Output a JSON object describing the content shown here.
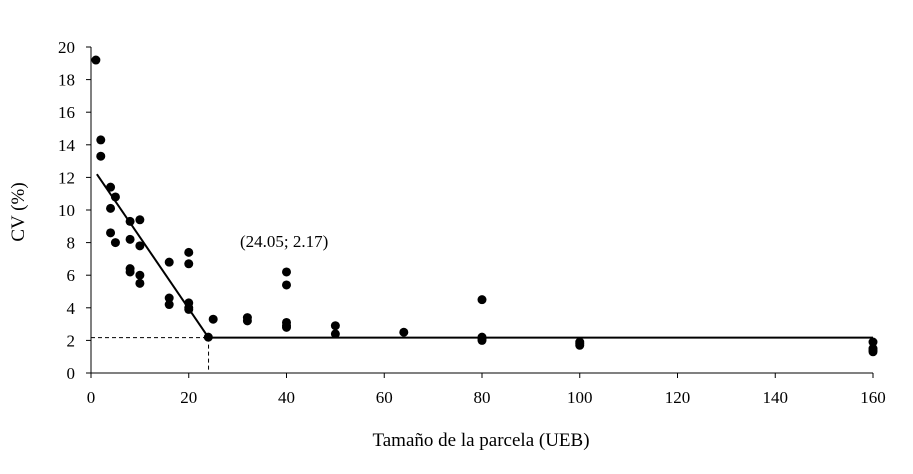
{
  "chart_data": {
    "type": "scatter",
    "title": "",
    "xlabel": "Tamaño de la parcela (UEB)",
    "ylabel": "CV (%)",
    "xlim": [
      0,
      160
    ],
    "ylim": [
      0,
      20
    ],
    "xticks": [
      0,
      20,
      40,
      60,
      80,
      100,
      120,
      140,
      160
    ],
    "yticks": [
      0,
      2,
      4,
      6,
      8,
      10,
      12,
      14,
      16,
      18,
      20
    ],
    "grid": false,
    "legend": "none",
    "point_color": "#000000",
    "series": [
      {
        "points": [
          [
            1,
            19.2
          ],
          [
            2,
            14.3
          ],
          [
            2,
            13.3
          ],
          [
            4,
            11.4
          ],
          [
            4,
            10.1
          ],
          [
            4,
            8.6
          ],
          [
            5,
            10.8
          ],
          [
            5,
            8.0
          ],
          [
            8,
            9.3
          ],
          [
            8,
            8.2
          ],
          [
            8,
            6.4
          ],
          [
            8,
            6.2
          ],
          [
            10,
            9.4
          ],
          [
            10,
            7.8
          ],
          [
            10,
            6.0
          ],
          [
            10,
            5.5
          ],
          [
            16,
            6.8
          ],
          [
            16,
            4.6
          ],
          [
            16,
            4.2
          ],
          [
            20,
            7.4
          ],
          [
            20,
            6.7
          ],
          [
            20,
            4.3
          ],
          [
            20,
            4.0
          ],
          [
            20,
            3.9
          ],
          [
            24,
            2.2
          ],
          [
            25,
            3.3
          ],
          [
            32,
            3.4
          ],
          [
            32,
            3.2
          ],
          [
            40,
            6.2
          ],
          [
            40,
            5.4
          ],
          [
            40,
            3.1
          ],
          [
            40,
            2.9
          ],
          [
            40,
            2.8
          ],
          [
            50,
            2.9
          ],
          [
            50,
            2.4
          ],
          [
            64,
            2.5
          ],
          [
            80,
            4.5
          ],
          [
            80,
            2.2
          ],
          [
            80,
            2.1
          ],
          [
            80,
            2.0
          ],
          [
            100,
            1.9
          ],
          [
            100,
            1.8
          ],
          [
            100,
            1.7
          ],
          [
            160,
            1.9
          ],
          [
            160,
            1.5
          ],
          [
            160,
            1.4
          ],
          [
            160,
            1.3
          ]
        ]
      }
    ],
    "fit_line": {
      "segments": [
        [
          [
            1.2,
            12.2
          ],
          [
            24.05,
            2.17
          ]
        ],
        [
          [
            24.05,
            2.17
          ],
          [
            160,
            2.17
          ]
        ]
      ]
    },
    "breakpoint": {
      "x": 24.05,
      "y": 2.17,
      "label": "(24.05; 2.17)"
    }
  }
}
